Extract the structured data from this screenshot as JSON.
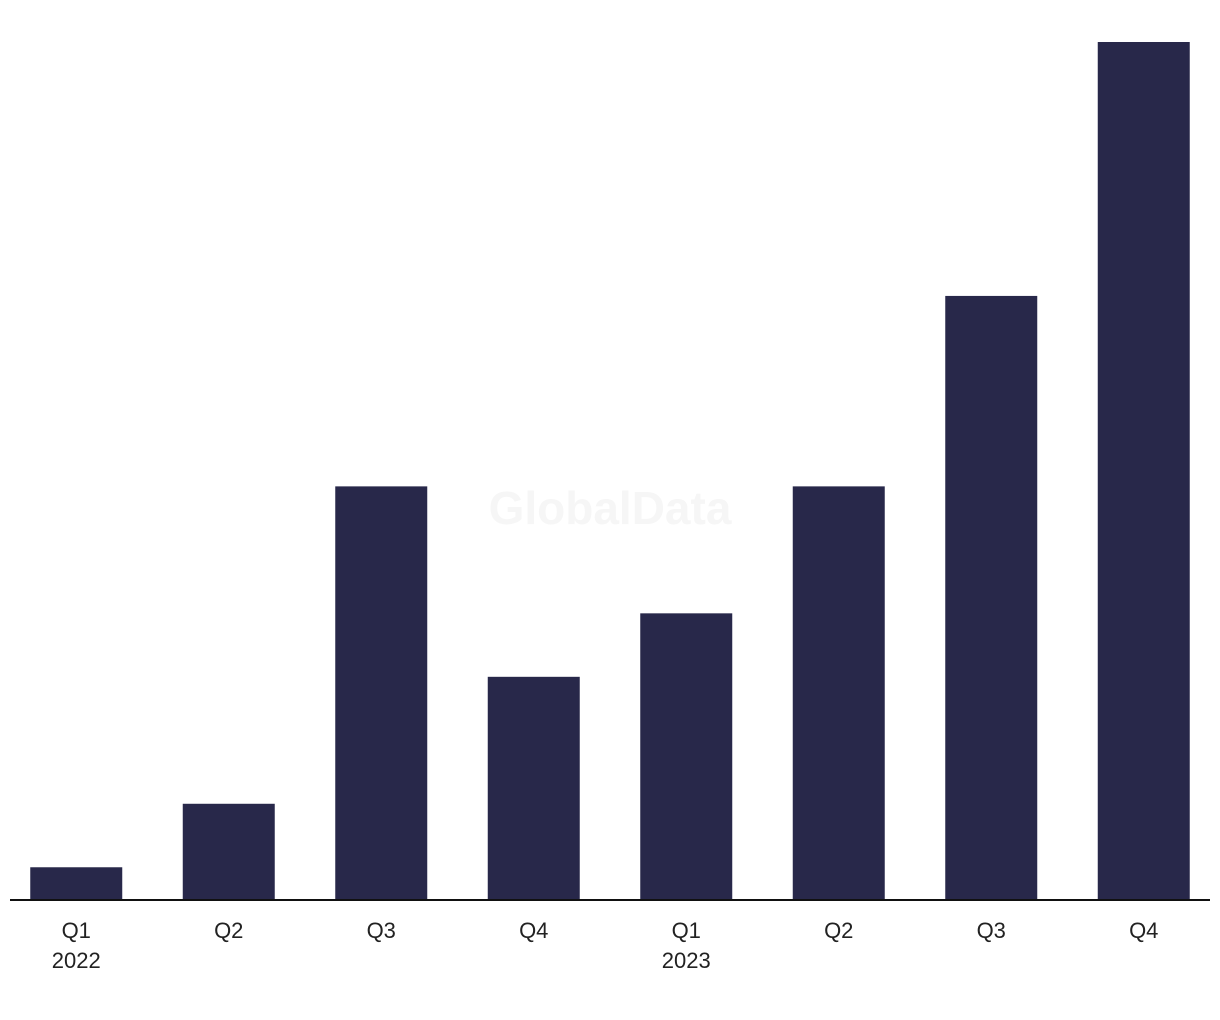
{
  "chart_data": {
    "type": "bar",
    "watermark": "GlobalData",
    "categories": [
      "Q1",
      "Q2",
      "Q3",
      "Q4",
      "Q1",
      "Q2",
      "Q3",
      "Q4"
    ],
    "year_labels": [
      "2022",
      null,
      null,
      null,
      "2023",
      null,
      null,
      null
    ],
    "values": [
      1,
      3,
      13,
      7,
      9,
      13,
      19,
      27
    ],
    "color": "#28284a",
    "ylim": [
      0,
      27
    ]
  }
}
